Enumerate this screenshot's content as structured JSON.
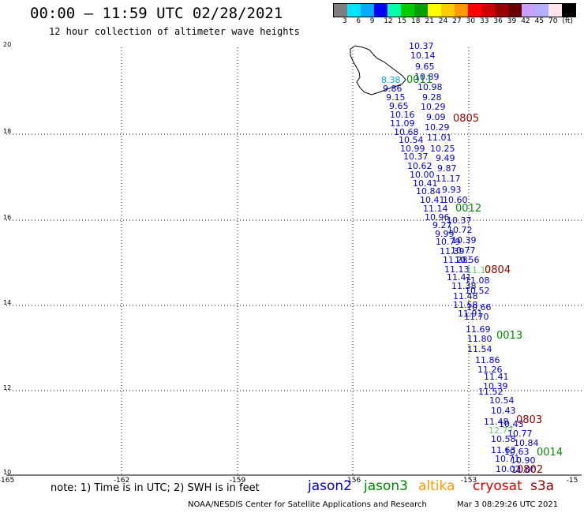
{
  "header": {
    "title": "00:00 – 11:59 UTC 02/28/2021",
    "subtitle": "12 hour collection of altimeter wave heights"
  },
  "legend": {
    "colors": [
      "#7f7f7f",
      "#00e5ff",
      "#00aaff",
      "#0000ff",
      "#00ffaa",
      "#00cc00",
      "#00a000",
      "#ffff00",
      "#ffcc00",
      "#ff9900",
      "#ff0000",
      "#cc0000",
      "#990000",
      "#6a0000",
      "#c8a0ff",
      "#b0b0ff",
      "#ffe4f0",
      "#000000"
    ],
    "labels": [
      "3",
      "6",
      "9",
      "12",
      "15",
      "18",
      "21",
      "24",
      "27",
      "30",
      "33",
      "36",
      "39",
      "42",
      "45",
      "70",
      "(ft)"
    ]
  },
  "axes": {
    "x_ticks": [
      "-165",
      "-162",
      "-159",
      "-156",
      "-153",
      "-15"
    ],
    "y_ticks": [
      "20",
      "18",
      "16",
      "14",
      "12",
      "10"
    ]
  },
  "note": "note: 1) Time is in UTC; 2) SWH is in feet",
  "satellites": [
    {
      "name": "jason2",
      "color": "#0000cc"
    },
    {
      "name": "jason3",
      "color": "#008800"
    },
    {
      "name": "altika",
      "color": "#ff9900"
    },
    {
      "name": "cryosat",
      "color": "#dd0000"
    },
    {
      "name": "s3a",
      "color": "#880000"
    }
  ],
  "credit": "NOAA/NESDIS Center for Satellite Applications and Research",
  "timestamp": "Mar  3 08:29:26 UTC 2021",
  "track_labels": [
    {
      "text": "0011",
      "color": "#008800"
    },
    {
      "text": "0805",
      "color": "#880000"
    },
    {
      "text": "0012",
      "color": "#008800"
    },
    {
      "text": "0804",
      "color": "#880000"
    },
    {
      "text": "0013",
      "color": "#008800"
    },
    {
      "text": "0803",
      "color": "#880000"
    },
    {
      "text": "0014",
      "color": "#008800"
    },
    {
      "text": "0802",
      "color": "#880000"
    }
  ],
  "observations": [
    {
      "v": "10.37",
      "c": "#0000cc"
    },
    {
      "v": "10.14",
      "c": "#0000cc"
    },
    {
      "v": "9.65",
      "c": "#0000cc"
    },
    {
      "v": "10.89",
      "c": "#0000cc"
    },
    {
      "v": "8.38",
      "c": "#00aacc"
    },
    {
      "v": "10.98",
      "c": "#0000cc"
    },
    {
      "v": "9.86",
      "c": "#0000cc"
    },
    {
      "v": "9.28",
      "c": "#0000cc"
    },
    {
      "v": "9.15",
      "c": "#0000cc"
    },
    {
      "v": "10.29",
      "c": "#0000cc"
    },
    {
      "v": "9.65",
      "c": "#0000cc"
    },
    {
      "v": "9.09",
      "c": "#0000cc"
    },
    {
      "v": "10.16",
      "c": "#0000cc"
    },
    {
      "v": "10.29",
      "c": "#0000cc"
    },
    {
      "v": "11.09",
      "c": "#0000cc"
    },
    {
      "v": "11.01",
      "c": "#0000cc"
    },
    {
      "v": "10.68",
      "c": "#0000cc"
    },
    {
      "v": "10.25",
      "c": "#0000cc"
    },
    {
      "v": "10.54",
      "c": "#0000cc"
    },
    {
      "v": "9.49",
      "c": "#0000cc"
    },
    {
      "v": "10.99",
      "c": "#0000cc"
    },
    {
      "v": "9.87",
      "c": "#0000cc"
    },
    {
      "v": "10.37",
      "c": "#0000cc"
    },
    {
      "v": "11.17",
      "c": "#0000cc"
    },
    {
      "v": "10.62",
      "c": "#0000cc"
    },
    {
      "v": "9.93",
      "c": "#0000cc"
    },
    {
      "v": "10.00",
      "c": "#0000cc"
    },
    {
      "v": "10.60",
      "c": "#0000cc"
    },
    {
      "v": "10.41",
      "c": "#0000cc"
    },
    {
      "v": "10.84",
      "c": "#0000cc"
    },
    {
      "v": "10.41",
      "c": "#0000cc"
    },
    {
      "v": "11.14",
      "c": "#0000cc"
    },
    {
      "v": "10.96",
      "c": "#0000cc"
    },
    {
      "v": "10.37",
      "c": "#0000cc"
    },
    {
      "v": "9.27",
      "c": "#0000cc"
    },
    {
      "v": "10.72",
      "c": "#0000cc"
    },
    {
      "v": "9.99",
      "c": "#0000cc"
    },
    {
      "v": "10.39",
      "c": "#0000cc"
    },
    {
      "v": "10.79",
      "c": "#0000cc"
    },
    {
      "v": "10.77",
      "c": "#0000cc"
    },
    {
      "v": "11.39",
      "c": "#0000cc"
    },
    {
      "v": "10.56",
      "c": "#0000cc"
    },
    {
      "v": "11.28",
      "c": "#0000cc"
    },
    {
      "v": "11.17",
      "c": "#66cc66"
    },
    {
      "v": "11.13",
      "c": "#0000cc"
    },
    {
      "v": "11.08",
      "c": "#0000cc"
    },
    {
      "v": "11.41",
      "c": "#0000cc"
    },
    {
      "v": "10.52",
      "c": "#0000cc"
    },
    {
      "v": "11.38",
      "c": "#0000cc"
    },
    {
      "v": "11.48",
      "c": "#0000cc"
    },
    {
      "v": "11.58",
      "c": "#0000cc"
    },
    {
      "v": "10.66",
      "c": "#0000cc"
    },
    {
      "v": "11.91",
      "c": "#0000cc"
    },
    {
      "v": "11.70",
      "c": "#0000cc"
    },
    {
      "v": "11.69",
      "c": "#0000cc"
    },
    {
      "v": "11.80",
      "c": "#0000cc"
    },
    {
      "v": "11.54",
      "c": "#0000cc"
    },
    {
      "v": "11.86",
      "c": "#0000cc"
    },
    {
      "v": "11.26",
      "c": "#0000cc"
    },
    {
      "v": "11.41",
      "c": "#0000cc"
    },
    {
      "v": "10.39",
      "c": "#0000cc"
    },
    {
      "v": "11.52",
      "c": "#0000cc"
    },
    {
      "v": "10.54",
      "c": "#0000cc"
    },
    {
      "v": "10.43",
      "c": "#0000cc"
    },
    {
      "v": "11.48",
      "c": "#0000cc"
    },
    {
      "v": "10.43",
      "c": "#0000cc"
    },
    {
      "v": "12.77",
      "c": "#66cc66"
    },
    {
      "v": "10.77",
      "c": "#0000cc"
    },
    {
      "v": "10.58",
      "c": "#0000cc"
    },
    {
      "v": "10.84",
      "c": "#0000cc"
    },
    {
      "v": "11.63",
      "c": "#0000cc"
    },
    {
      "v": "10.63",
      "c": "#0000cc"
    },
    {
      "v": "10.71",
      "c": "#0000cc"
    },
    {
      "v": "10.90",
      "c": "#0000cc"
    },
    {
      "v": "10.02",
      "c": "#0000cc"
    },
    {
      "v": "11.00",
      "c": "#0000cc"
    }
  ]
}
